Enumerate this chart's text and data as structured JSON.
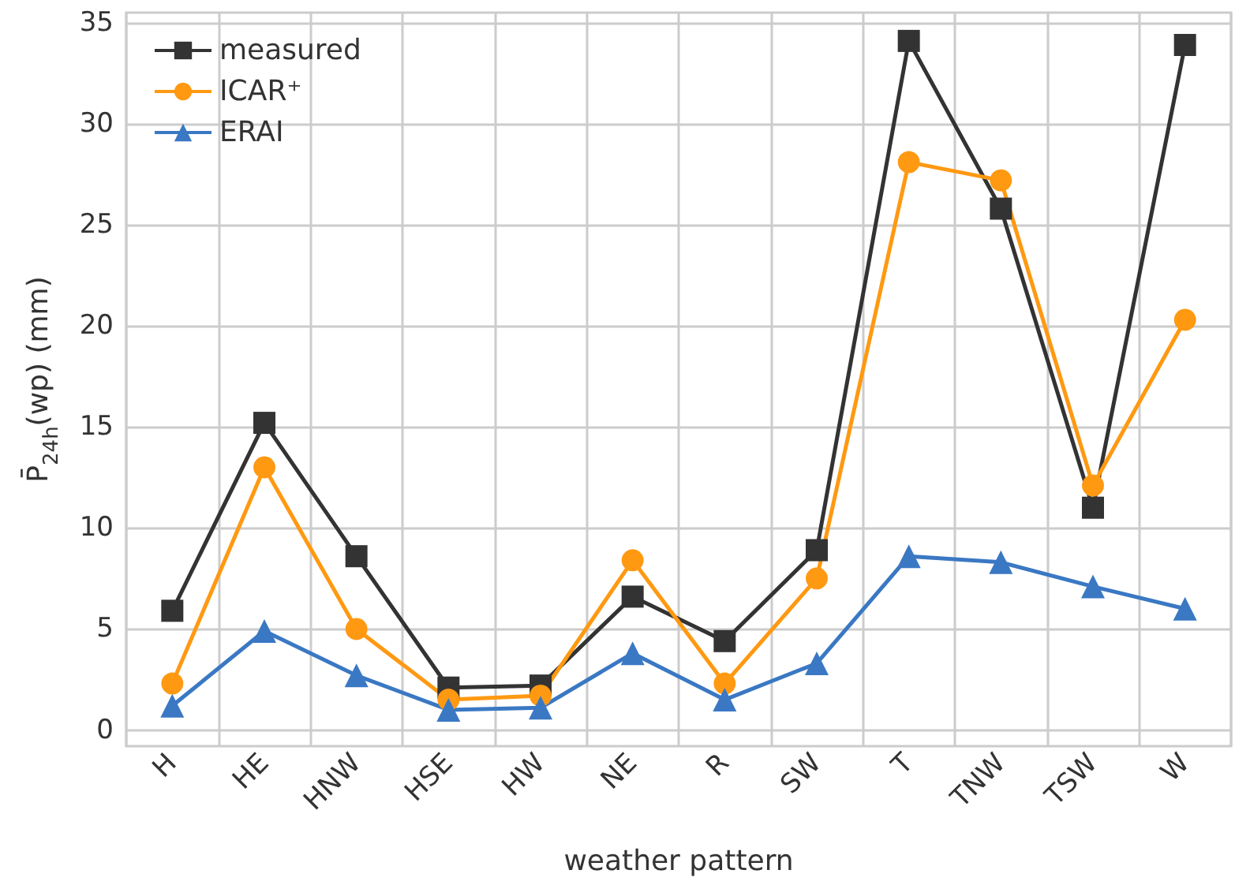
{
  "chart_data": {
    "type": "line",
    "xlabel": "weather pattern",
    "ylabel": "P̄$_{24h}$(wp) (mm)",
    "categories": [
      "H",
      "HE",
      "HNW",
      "HSE",
      "HW",
      "NE",
      "R",
      "SW",
      "T",
      "TNW",
      "TSW",
      "W"
    ],
    "series": [
      {
        "name": "measured",
        "color": "#333333",
        "marker": "square",
        "values": [
          5.9,
          15.2,
          8.6,
          2.1,
          2.2,
          6.6,
          4.4,
          8.9,
          34.1,
          25.8,
          11.0,
          33.9
        ]
      },
      {
        "name": "ICAR⁺",
        "color": "#ff9912",
        "marker": "circle",
        "values": [
          2.3,
          13.0,
          5.0,
          1.5,
          1.7,
          8.4,
          2.3,
          7.5,
          28.1,
          27.2,
          12.1,
          20.3
        ]
      },
      {
        "name": "ERAI",
        "color": "#3a78c3",
        "marker": "triangle",
        "values": [
          1.2,
          4.9,
          2.7,
          1.0,
          1.1,
          3.8,
          1.5,
          3.3,
          8.6,
          8.3,
          7.1,
          6.0
        ]
      }
    ],
    "ylim": [
      -0.8,
      35.5
    ],
    "yticks": [
      0,
      5,
      10,
      15,
      20,
      25,
      30,
      35
    ],
    "grid": true,
    "legend": "top left",
    "line_style": "solid"
  }
}
